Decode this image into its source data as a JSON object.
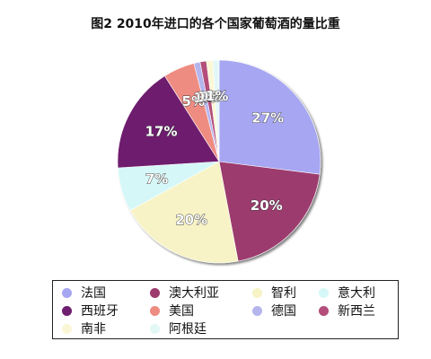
{
  "chart_data": {
    "type": "pie",
    "title": "图2 2010年进口的各个国家葡萄酒的量比重",
    "slices": [
      {
        "name": "法国",
        "value": 27,
        "label": "27%",
        "color": "#a6a6f2"
      },
      {
        "name": "澳大利亚",
        "value": 20,
        "label": "20%",
        "color": "#9c3a6e"
      },
      {
        "name": "智利",
        "value": 20,
        "label": "20%",
        "color": "#f7f3c6"
      },
      {
        "name": "意大利",
        "value": 7,
        "label": "7%",
        "color": "#d6f7f7"
      },
      {
        "name": "西班牙",
        "value": 17,
        "label": "17%",
        "color": "#6e1f6e"
      },
      {
        "name": "美国",
        "value": 5,
        "label": "5%",
        "color": "#ee8c82"
      },
      {
        "name": "德国",
        "value": 1,
        "label": "1%",
        "color": "#b5b5ee"
      },
      {
        "name": "新西兰",
        "value": 1,
        "label": "1%",
        "color": "#b34d7a"
      },
      {
        "name": "南非",
        "value": 1,
        "label": "1%",
        "color": "#fbf7d6"
      },
      {
        "name": "阿根廷",
        "value": 1,
        "label": "1%",
        "color": "#e3f7f7"
      }
    ],
    "legend_position": "bottom",
    "legend_columns": 4
  }
}
